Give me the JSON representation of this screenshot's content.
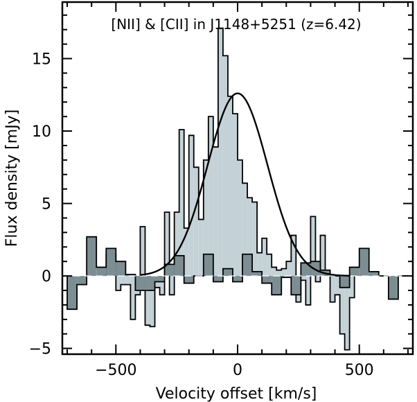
{
  "chart_data": {
    "type": "bar",
    "title": "[NII] & [CII] in J1148+5251 (z=6.42)",
    "xlabel": "Velocity offset [km/s]",
    "ylabel": "Flux density [mJy]",
    "xlim": [
      -720,
      720
    ],
    "ylim": [
      -5.4,
      18.9
    ],
    "xticks": [
      -500,
      0,
      500
    ],
    "xtick_labels": [
      "−500",
      "0",
      "500"
    ],
    "yticks": [
      -5,
      0,
      5,
      10,
      15
    ],
    "ytick_labels": [
      "−5",
      "0",
      "5",
      "10",
      "15"
    ],
    "bin_width": 20,
    "series": [
      {
        "name": "[CII]",
        "style": "light histogram",
        "color": "#c4d2d8",
        "bin_start": -540,
        "values": [
          1.5,
          1.5,
          -1.0,
          -0.6,
          -0.6,
          -3.0,
          -1.3,
          3.4,
          -3.4,
          -3.5,
          -0.8,
          -1.3,
          4.4,
          -1.3,
          4.4,
          10.1,
          3.3,
          9.7,
          7.5,
          3.9,
          8.0,
          11.0,
          8.9,
          17.1,
          15.2,
          12.4,
          11.2,
          8.0,
          6.4,
          5.4,
          5.1,
          1.6,
          2.6,
          1.5,
          0.6,
          0.4,
          0.5,
          1.0,
          2.8,
          -1.8,
          -0.3,
          -2.0,
          4.1,
          -0.4,
          2.8,
          0.3,
          -1.8,
          -1.3,
          -4.0,
          -5.1,
          -1.5
        ]
      },
      {
        "name": "[NII]",
        "style": "dark histogram",
        "color": "#7d8e93",
        "bin_start": -700,
        "bin_width": 40,
        "values": [
          -2.3,
          -0.6,
          2.7,
          0.6,
          1.9,
          1.0,
          0.1,
          -1.0,
          -1.0,
          -0.4,
          0.8,
          1.4,
          -0.5,
          0.0,
          1.5,
          -0.4,
          0.5,
          -0.4,
          1.5,
          0.3,
          -0.5,
          -1.3,
          -0.1,
          -1.3,
          0.9,
          1.0,
          0.4,
          0.0,
          -0.8,
          0.6,
          1.9,
          0.3,
          0.0,
          -1.6,
          0.0
        ]
      },
      {
        "name": "Gaussian fit",
        "type": "line",
        "color": "#000000",
        "amplitude": 12.6,
        "center": 0,
        "fwhm": 290,
        "x_range": [
          -400,
          460
        ]
      }
    ]
  }
}
